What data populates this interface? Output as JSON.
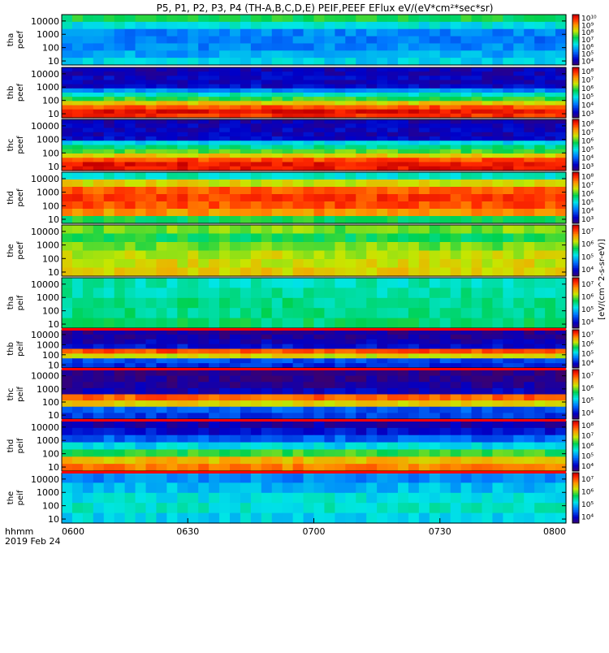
{
  "chart_data": {
    "type": "heatmap",
    "title": "P5, P1, P2, P3, P4 (TH-A,B,C,D,E) PEIF,PEEF EFlux eV/(eV*cm²*sec*sr)",
    "colorbar_unit_label": "[eV/(cm^2-s-sr-eV)]",
    "x_ticks": [
      "0600",
      "0630",
      "0700",
      "0730",
      "0800"
    ],
    "x_corner_label": "hhmm",
    "date_label": "2019 Feb 24",
    "x_range": [
      "06:00",
      "08:00"
    ],
    "y_ticks": [
      "10",
      "100",
      "1000",
      "10000"
    ],
    "y_scale": "log",
    "y_range": [
      5,
      30000
    ],
    "colormap": "rainbow",
    "panels": [
      {
        "name": "tha peef",
        "probe": "tha",
        "species": "peef",
        "colorbar_ticks": [
          "10⁴",
          "10⁵",
          "10⁶",
          "10⁷",
          "10⁸",
          "10⁹",
          "10¹⁰"
        ],
        "row_levels": [
          0.4,
          0.34,
          0.3,
          0.28,
          0.3,
          0.42,
          0.55
        ]
      },
      {
        "name": "thb peef",
        "probe": "thb",
        "species": "peef",
        "colorbar_ticks": [
          "10³",
          "10⁴",
          "10⁵",
          "10⁶",
          "10⁷",
          "10⁸"
        ],
        "row_levels": [
          0.92,
          0.97,
          0.88,
          0.72,
          0.58,
          0.45,
          0.3,
          0.12,
          0.1,
          0.11,
          0.1,
          0.09
        ]
      },
      {
        "name": "thc peef",
        "probe": "thc",
        "species": "peef",
        "colorbar_ticks": [
          "10³",
          "10⁴",
          "10⁵",
          "10⁶",
          "10⁷",
          "10⁸"
        ],
        "row_levels": [
          0.95,
          0.96,
          0.88,
          0.72,
          0.6,
          0.5,
          0.4,
          0.12,
          0.1,
          0.11,
          0.1,
          0.09
        ]
      },
      {
        "name": "thd peef",
        "probe": "thd",
        "species": "peef",
        "colorbar_ticks": [
          "10³",
          "10⁴",
          "10⁵",
          "10⁶",
          "10⁷",
          "10⁸"
        ],
        "row_levels": [
          0.55,
          0.8,
          0.88,
          0.9,
          0.86,
          0.7,
          0.45
        ]
      },
      {
        "name": "the peef",
        "probe": "the",
        "species": "peef",
        "colorbar_ticks": [
          "10⁴",
          "10⁵",
          "10⁶",
          "10⁷"
        ],
        "row_levels": [
          0.72,
          0.7,
          0.68,
          0.62,
          0.55,
          0.62
        ]
      },
      {
        "name": "tha peif",
        "probe": "tha",
        "species": "peif",
        "colorbar_ticks": [
          "10⁴",
          "10⁵",
          "10⁶",
          "10⁷"
        ],
        "row_levels": [
          0.52,
          0.5,
          0.5,
          0.48,
          0.46
        ]
      },
      {
        "name": "thb peif",
        "probe": "thb",
        "species": "peif",
        "colorbar_ticks": [
          "10⁴",
          "10⁵",
          "10⁶",
          "10⁷"
        ],
        "row_levels": [
          0.18,
          0.22,
          0.7,
          0.88,
          0.14,
          0.1,
          0.06,
          0.05
        ]
      },
      {
        "name": "thc peif",
        "probe": "thc",
        "species": "peif",
        "colorbar_ticks": [
          "10⁴",
          "10⁵",
          "10⁶",
          "10⁷"
        ],
        "row_levels": [
          0.2,
          0.24,
          0.72,
          0.86,
          0.1,
          0.06,
          0.04,
          0.03
        ]
      },
      {
        "name": "thd peif",
        "probe": "thd",
        "species": "peif",
        "colorbar_ticks": [
          "10⁴",
          "10⁵",
          "10⁶",
          "10⁷",
          "10⁸"
        ],
        "row_levels": [
          0.82,
          0.75,
          0.58,
          0.4,
          0.25,
          0.14,
          0.08
        ]
      },
      {
        "name": "the peif",
        "probe": "the",
        "species": "peif",
        "colorbar_ticks": [
          "10⁴",
          "10⁵",
          "10⁶",
          "10⁷"
        ],
        "row_levels": [
          0.4,
          0.44,
          0.42,
          0.36,
          0.3
        ]
      }
    ]
  }
}
